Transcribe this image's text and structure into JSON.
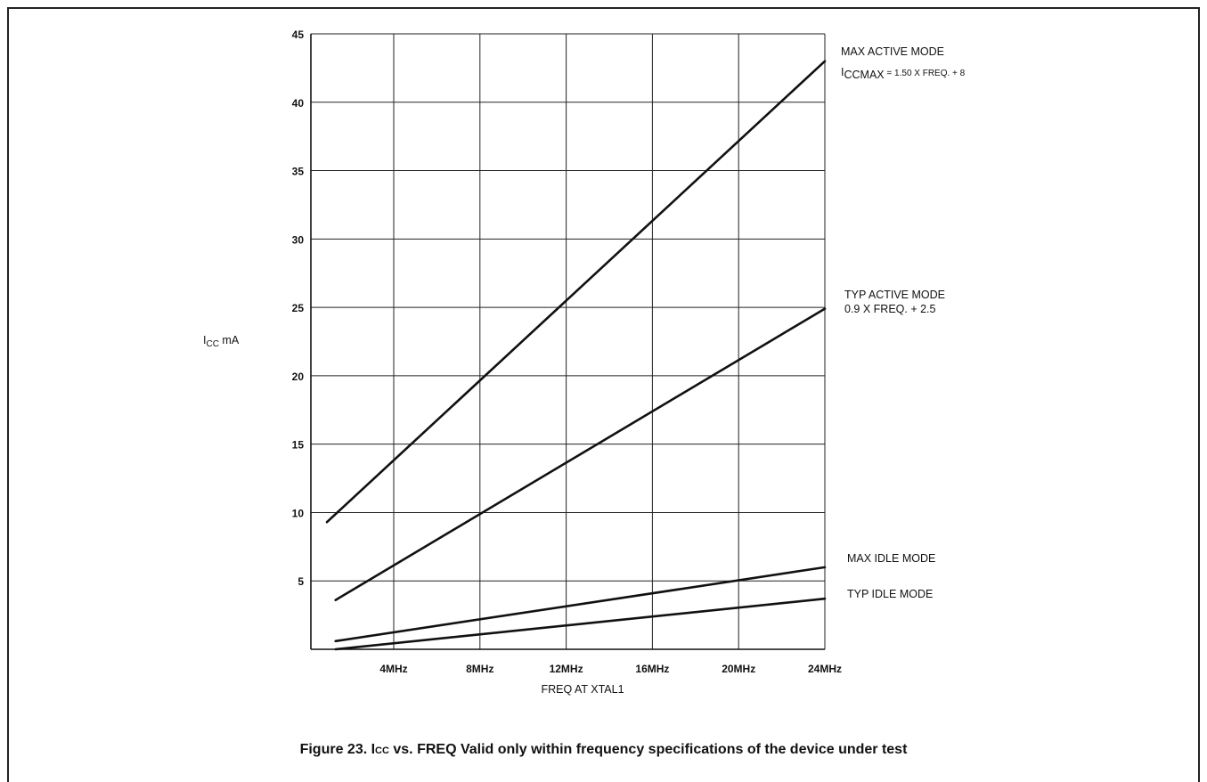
{
  "chart_data": {
    "type": "line",
    "xlabel": "FREQ AT XTAL1",
    "ylabel_main": "I",
    "ylabel_sub": "CC",
    "ylabel_unit": " mA",
    "x_ticks": [
      4,
      8,
      12,
      16,
      20,
      24
    ],
    "x_tick_labels": [
      "4MHz",
      "8MHz",
      "12MHz",
      "16MHz",
      "20MHz",
      "24MHz"
    ],
    "y_ticks": [
      5,
      10,
      15,
      20,
      25,
      30,
      35,
      40,
      45
    ],
    "y_tick_labels": [
      "5",
      "10",
      "15",
      "20",
      "25",
      "30",
      "35",
      "40",
      "45"
    ],
    "xlim": [
      0.5,
      24
    ],
    "ylim": [
      0,
      45
    ],
    "grid": true,
    "series": [
      {
        "name": "MAX ACTIVE MODE",
        "x": [
          0.9,
          24
        ],
        "y": [
          9.3,
          43
        ]
      },
      {
        "name": "TYP ACTIVE MODE",
        "x": [
          1.3,
          24
        ],
        "y": [
          3.6,
          24.9
        ]
      },
      {
        "name": "MAX IDLE MODE",
        "x": [
          1.3,
          24
        ],
        "y": [
          0.6,
          6
        ]
      },
      {
        "name": "TYP IDLE MODE",
        "x": [
          1.3,
          24
        ],
        "y": [
          0,
          3.7
        ]
      }
    ],
    "annotations": {
      "max_active_title": "MAX ACTIVE MODE",
      "max_active_eq_main": "I",
      "max_active_eq_sub": "CCMAX",
      "max_active_eq_rest": " = 1.50  X FREQ. + 8",
      "typ_active_title": "TYP ACTIVE MODE",
      "typ_active_eq": "0.9  X FREQ. + 2.5",
      "max_idle": "MAX IDLE MODE",
      "typ_idle": "TYP IDLE MODE"
    }
  },
  "caption": {
    "prefix": "Figure 23.  I",
    "sub": "CC",
    "rest": " vs. FREQ Valid only within frequency specifications of the device under test"
  }
}
